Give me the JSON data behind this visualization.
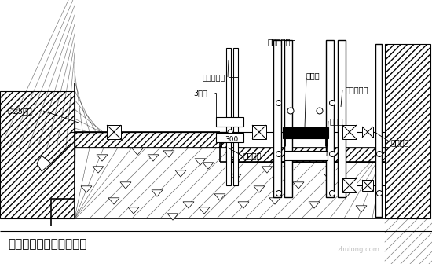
{
  "title": "基础底板变标高底板施工",
  "title_fontsize": 11,
  "bg_color": "#ffffff",
  "watermark": "zhulong.com",
  "labels": {
    "zuhe_top": "组合钢模板",
    "shuzhuan": "竖向双钢管",
    "3ka": "3型卡",
    "zhishui": "止水带",
    "zuhe_right": "组合钢模板",
    "dingmu": "顶模撑",
    "duola": "对拉螺栓",
    "dimao_jin": "地锚钢筋",
    "dimao": "∅25地锚",
    "dim300": "300"
  }
}
